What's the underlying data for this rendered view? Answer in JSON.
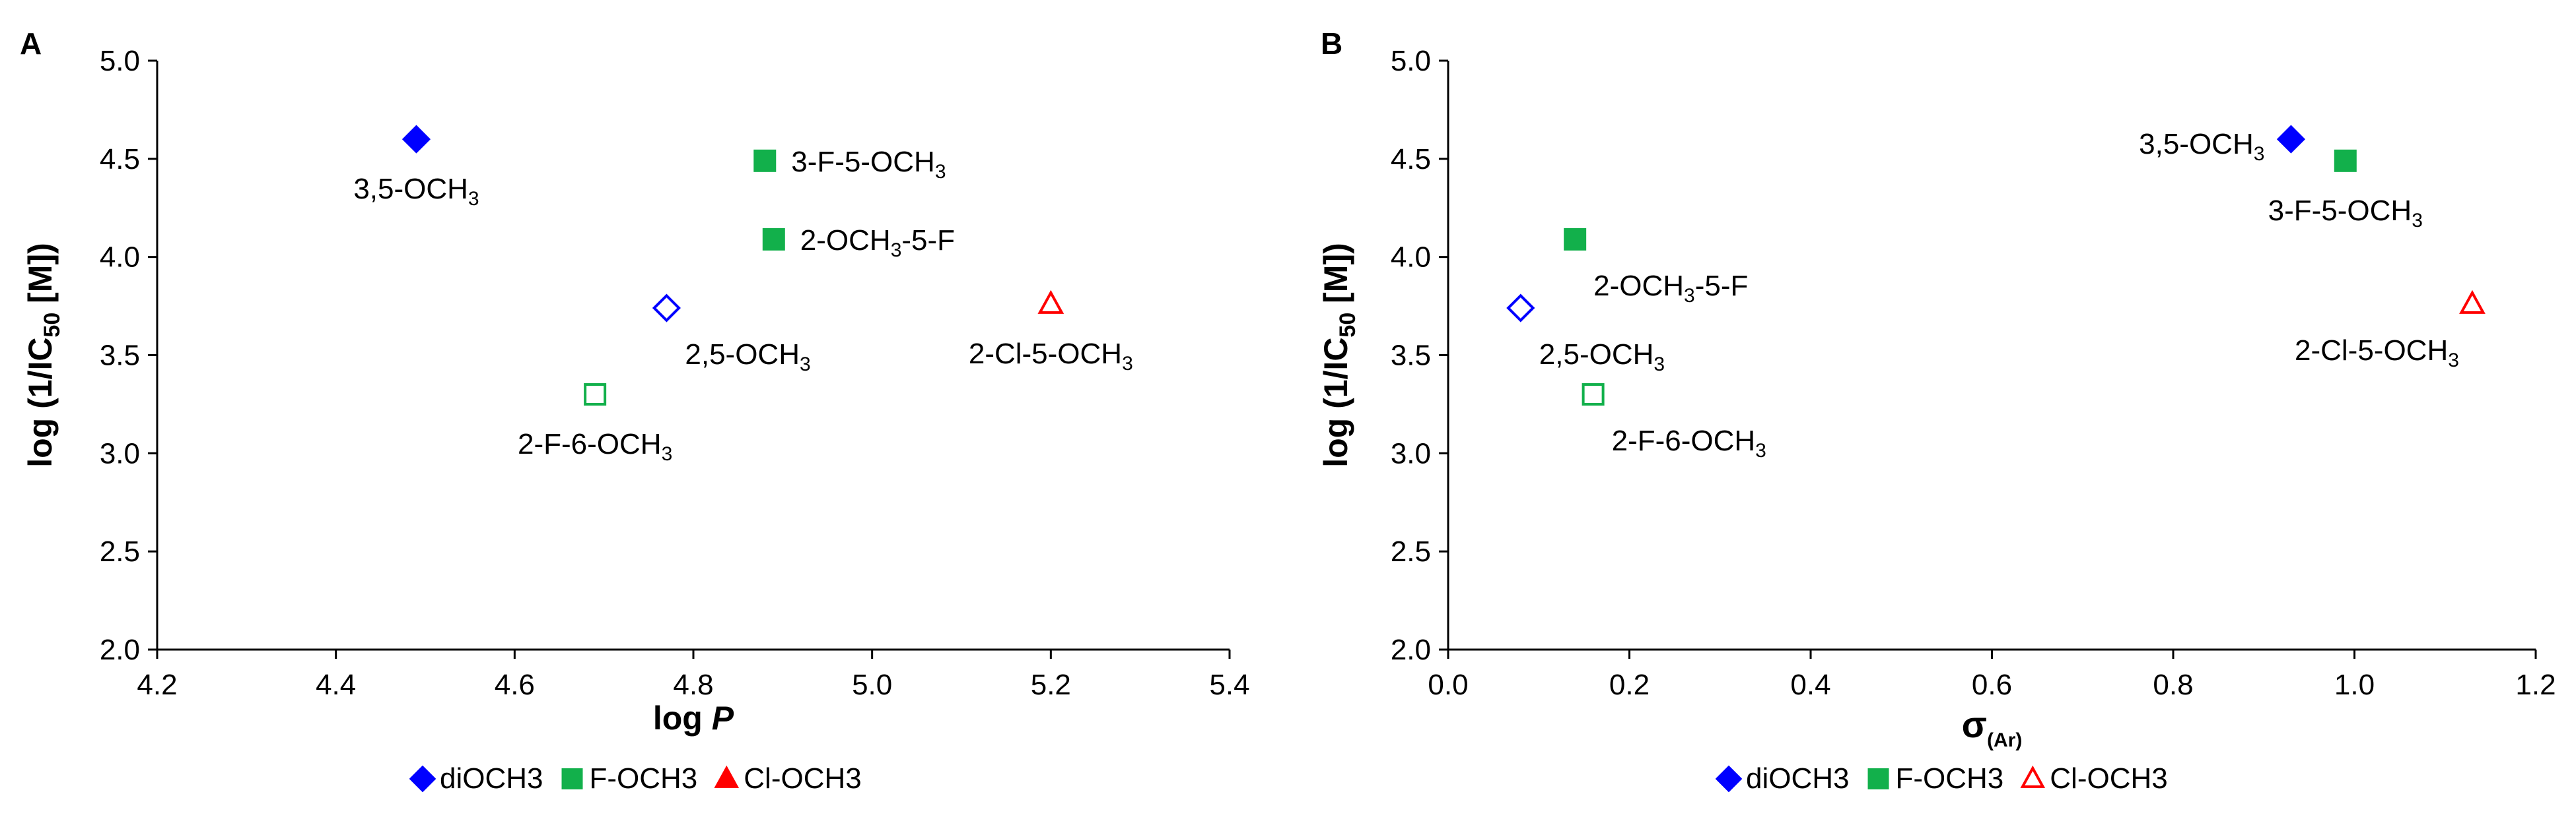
{
  "colors": {
    "diOCH3": "#0000ff",
    "F-OCH3": "#12b04b",
    "Cl-OCH3": "#ff0000"
  },
  "chart_data": [
    {
      "type": "scatter",
      "panel": "A",
      "xlabel": {
        "main": "log ",
        "italic": "P"
      },
      "ylabel": {
        "pre": "log (1/IC",
        "sub": "50",
        "post": " [M])"
      },
      "xlim": [
        4.2,
        5.4
      ],
      "ylim": [
        2.0,
        5.0
      ],
      "xticks": [
        "4.2",
        "4.4",
        "4.6",
        "4.8",
        "5.0",
        "5.2",
        "5.4"
      ],
      "yticks": [
        "2.0",
        "2.5",
        "3.0",
        "3.5",
        "4.0",
        "4.5",
        "5.0"
      ],
      "grid": false,
      "legend": [
        {
          "name": "diOCH3",
          "marker": "diamond",
          "filled": true,
          "color": "#0000ff"
        },
        {
          "name": "F-OCH3",
          "marker": "square",
          "filled": true,
          "color": "#12b04b"
        },
        {
          "name": "Cl-OCH3",
          "marker": "triangle",
          "filled": true,
          "color": "#ff0000"
        }
      ],
      "legend_position": "bottom",
      "points": [
        {
          "x": 4.49,
          "y": 4.6,
          "marker": "diamond",
          "filled": true,
          "color": "#0000ff",
          "label": [
            "3,5-OCH",
            "3",
            ""
          ],
          "label_pos": "below"
        },
        {
          "x": 4.77,
          "y": 3.74,
          "marker": "diamond",
          "filled": false,
          "color": "#0000ff",
          "label": [
            "2,5-OCH",
            "3",
            ""
          ],
          "label_pos": "below-right"
        },
        {
          "x": 4.88,
          "y": 4.49,
          "marker": "square",
          "filled": true,
          "color": "#12b04b",
          "label": [
            "3-F-5-OCH",
            "3",
            ""
          ],
          "label_pos": "right"
        },
        {
          "x": 4.89,
          "y": 4.09,
          "marker": "square",
          "filled": true,
          "color": "#12b04b",
          "label": [
            "2-OCH",
            "3",
            "-5-F"
          ],
          "label_pos": "right"
        },
        {
          "x": 4.69,
          "y": 3.3,
          "marker": "square",
          "filled": false,
          "color": "#12b04b",
          "label": [
            "2-F-6-OCH",
            "3",
            ""
          ],
          "label_pos": "below"
        },
        {
          "x": 5.2,
          "y": 3.76,
          "marker": "triangle",
          "filled": false,
          "color": "#ff0000",
          "label": [
            "2-Cl-5-OCH",
            "3",
            ""
          ],
          "label_pos": "below"
        }
      ]
    },
    {
      "type": "scatter",
      "panel": "B",
      "xlabel": {
        "main": "σ",
        "sub": "(Ar)"
      },
      "ylabel": {
        "pre": "log (1/IC",
        "sub": "50",
        "post": " [M])"
      },
      "xlim": [
        0.0,
        1.2
      ],
      "ylim": [
        2.0,
        5.0
      ],
      "xticks": [
        "0.0",
        "0.2",
        "0.4",
        "0.6",
        "0.8",
        "1.0",
        "1.2"
      ],
      "yticks": [
        "2.0",
        "2.5",
        "3.0",
        "3.5",
        "4.0",
        "4.5",
        "5.0"
      ],
      "grid": false,
      "legend": [
        {
          "name": "diOCH3",
          "marker": "diamond",
          "filled": true,
          "color": "#0000ff"
        },
        {
          "name": "F-OCH3",
          "marker": "square",
          "filled": true,
          "color": "#12b04b"
        },
        {
          "name": "Cl-OCH3",
          "marker": "triangle",
          "filled": false,
          "color": "#ff0000"
        }
      ],
      "legend_position": "bottom",
      "points": [
        {
          "x": 0.93,
          "y": 4.6,
          "marker": "diamond",
          "filled": true,
          "color": "#0000ff",
          "label": [
            "3,5-OCH",
            "3",
            ""
          ],
          "label_pos": "left"
        },
        {
          "x": 0.08,
          "y": 3.74,
          "marker": "diamond",
          "filled": false,
          "color": "#0000ff",
          "label": [
            "2,5-OCH",
            "3",
            ""
          ],
          "label_pos": "below-right"
        },
        {
          "x": 0.99,
          "y": 4.49,
          "marker": "square",
          "filled": true,
          "color": "#12b04b",
          "label": [
            "3-F-5-OCH",
            "3",
            ""
          ],
          "label_pos": "below"
        },
        {
          "x": 0.14,
          "y": 4.09,
          "marker": "square",
          "filled": true,
          "color": "#12b04b",
          "label": [
            "2-OCH",
            "3",
            "-5-F"
          ],
          "label_pos": "below-right"
        },
        {
          "x": 0.16,
          "y": 3.3,
          "marker": "square",
          "filled": false,
          "color": "#12b04b",
          "label": [
            "2-F-6-OCH",
            "3",
            ""
          ],
          "label_pos": "below-right"
        },
        {
          "x": 1.13,
          "y": 3.76,
          "marker": "triangle",
          "filled": false,
          "color": "#ff0000",
          "label": [
            "2-Cl-5-OCH",
            "3",
            ""
          ],
          "label_pos": "below-left"
        }
      ]
    }
  ]
}
